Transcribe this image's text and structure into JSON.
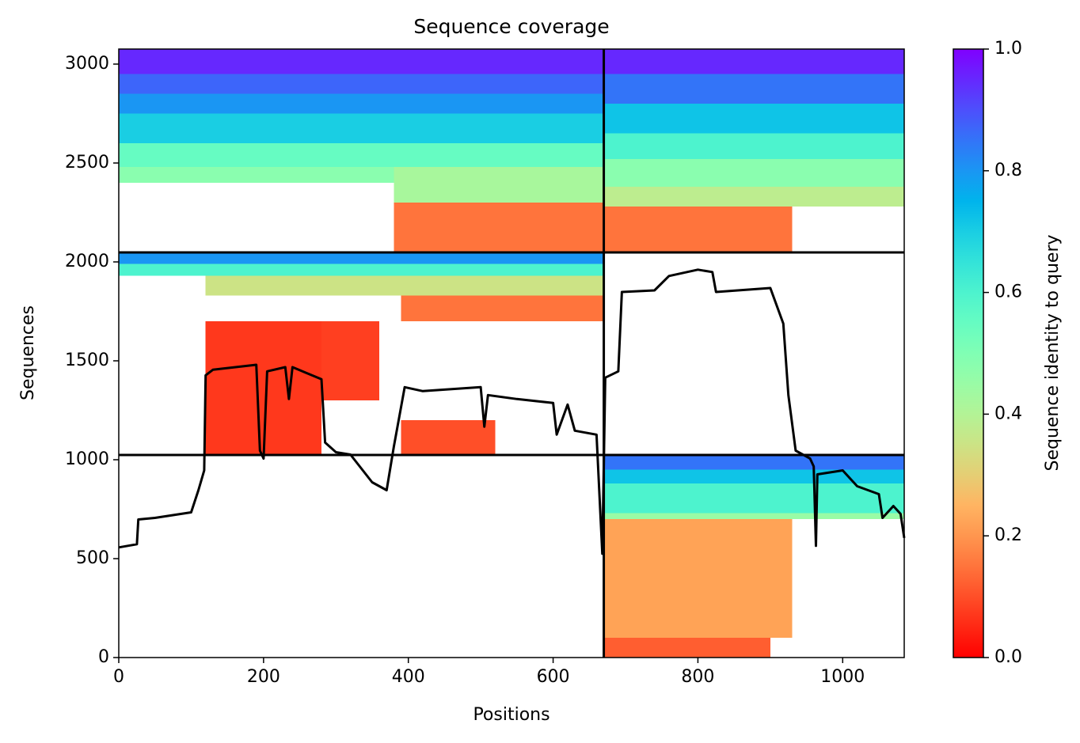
{
  "chart_data": {
    "type": "coverage",
    "title": "Sequence coverage",
    "x_label": "Positions",
    "y_label": "Sequences",
    "colorbar_label": "Sequence identity to query",
    "xlim": [
      0,
      1085
    ],
    "ylim": [
      0,
      3076
    ],
    "xticks": [
      0,
      200,
      400,
      600,
      800,
      1000
    ],
    "yticks": [
      0,
      500,
      1000,
      1500,
      2000,
      2500,
      3000
    ],
    "clim": [
      0,
      1
    ],
    "cticks": [
      {
        "value": 0,
        "label": "0.0"
      },
      0.2,
      0.4,
      0.6,
      0.8,
      {
        "value": 1,
        "label": "1.0"
      }
    ],
    "colormap": "rainbow_r",
    "boundaries": {
      "x": [
        670
      ],
      "y": [
        1024,
        2048
      ]
    },
    "cells": [
      {
        "x": [
          0,
          670
        ],
        "y": [
          2950,
          3076
        ],
        "value": 0.95
      },
      {
        "x": [
          0,
          670
        ],
        "y": [
          2850,
          2950
        ],
        "value": 0.87
      },
      {
        "x": [
          0,
          670
        ],
        "y": [
          2750,
          2850
        ],
        "value": 0.8
      },
      {
        "x": [
          0,
          670
        ],
        "y": [
          2600,
          2750
        ],
        "value": 0.7
      },
      {
        "x": [
          0,
          670
        ],
        "y": [
          2480,
          2600
        ],
        "value": 0.55
      },
      {
        "x": [
          0,
          380
        ],
        "y": [
          2400,
          2480
        ],
        "value": 0.48
      },
      {
        "x": [
          380,
          670
        ],
        "y": [
          2300,
          2480
        ],
        "value": 0.42
      },
      {
        "x": [
          380,
          670
        ],
        "y": [
          2048,
          2300
        ],
        "value": 0.15
      },
      {
        "x": [
          670,
          1085
        ],
        "y": [
          2950,
          3076
        ],
        "value": 0.95
      },
      {
        "x": [
          670,
          1085
        ],
        "y": [
          2800,
          2950
        ],
        "value": 0.85
      },
      {
        "x": [
          670,
          1085
        ],
        "y": [
          2650,
          2800
        ],
        "value": 0.72
      },
      {
        "x": [
          670,
          1085
        ],
        "y": [
          2520,
          2650
        ],
        "value": 0.6
      },
      {
        "x": [
          670,
          1085
        ],
        "y": [
          2380,
          2520
        ],
        "value": 0.48
      },
      {
        "x": [
          670,
          1085
        ],
        "y": [
          2280,
          2380
        ],
        "value": 0.38
      },
      {
        "x": [
          670,
          930
        ],
        "y": [
          2048,
          2280
        ],
        "value": 0.15
      },
      {
        "x": [
          0,
          670
        ],
        "y": [
          1990,
          2048
        ],
        "value": 0.8
      },
      {
        "x": [
          0,
          670
        ],
        "y": [
          1930,
          1990
        ],
        "value": 0.6
      },
      {
        "x": [
          120,
          670
        ],
        "y": [
          1830,
          1930
        ],
        "value": 0.35
      },
      {
        "x": [
          390,
          670
        ],
        "y": [
          1700,
          1830
        ],
        "value": 0.15
      },
      {
        "x": [
          120,
          280
        ],
        "y": [
          1024,
          1700
        ],
        "value": 0.07
      },
      {
        "x": [
          280,
          360
        ],
        "y": [
          1300,
          1700
        ],
        "value": 0.08
      },
      {
        "x": [
          390,
          520
        ],
        "y": [
          1024,
          1200
        ],
        "value": 0.1
      },
      {
        "x": [
          670,
          1085
        ],
        "y": [
          950,
          1024
        ],
        "value": 0.85
      },
      {
        "x": [
          670,
          1085
        ],
        "y": [
          880,
          950
        ],
        "value": 0.72
      },
      {
        "x": [
          670,
          1085
        ],
        "y": [
          730,
          880
        ],
        "value": 0.6
      },
      {
        "x": [
          670,
          1085
        ],
        "y": [
          700,
          730
        ],
        "value": 0.45
      },
      {
        "x": [
          670,
          930
        ],
        "y": [
          100,
          700
        ],
        "value": 0.22
      },
      {
        "x": [
          670,
          900
        ],
        "y": [
          0,
          100
        ],
        "value": 0.12
      }
    ],
    "coverage": {
      "x": [
        0,
        25,
        27,
        50,
        100,
        110,
        118,
        120,
        130,
        190,
        195,
        200,
        205,
        230,
        235,
        240,
        280,
        285,
        300,
        320,
        350,
        370,
        380,
        395,
        420,
        500,
        505,
        510,
        550,
        600,
        605,
        620,
        630,
        660,
        668,
        672,
        690,
        695,
        740,
        760,
        800,
        820,
        825,
        900,
        918,
        925,
        935,
        955,
        960,
        963,
        965,
        1000,
        1020,
        1050,
        1055,
        1070,
        1080,
        1085
      ],
      "values": [
        557,
        573,
        698,
        706,
        734,
        846,
        946,
        1427,
        1455,
        1480,
        1046,
        1006,
        1447,
        1468,
        1307,
        1468,
        1407,
        1087,
        1038,
        1026,
        886,
        846,
        1066,
        1367,
        1347,
        1367,
        1167,
        1327,
        1307,
        1287,
        1127,
        1279,
        1147,
        1127,
        525,
        1415,
        1447,
        1848,
        1856,
        1929,
        1961,
        1949,
        1848,
        1868,
        1688,
        1327,
        1046,
        1006,
        966,
        565,
        926,
        946,
        866,
        826,
        706,
        766,
        726,
        605
      ],
      "color": "#000000"
    }
  }
}
